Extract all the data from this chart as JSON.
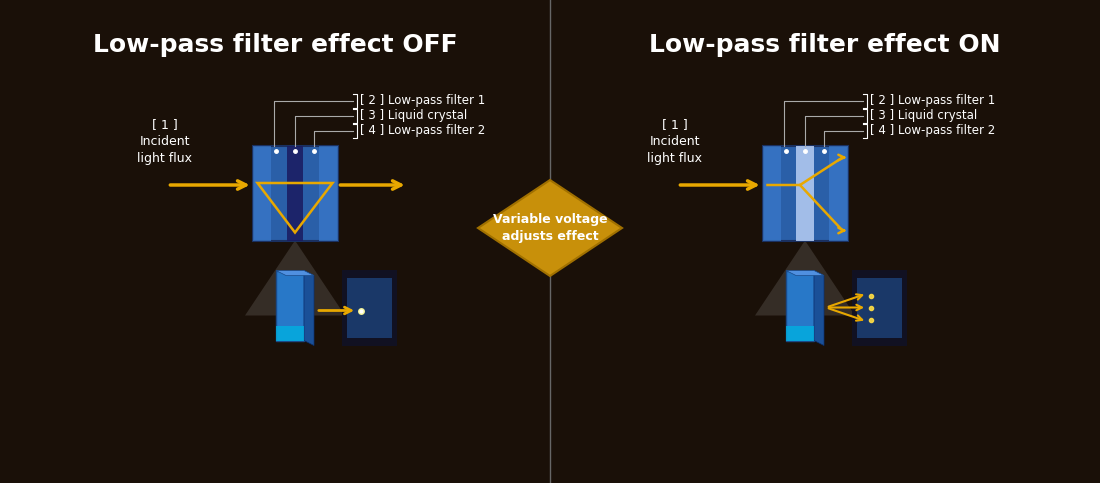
{
  "bg_color": "#1a1008",
  "divider_color": "#555555",
  "title_left": "Low-pass filter effect OFF",
  "title_right": "Low-pass filter effect ON",
  "title_color": "#ffffff",
  "title_fontsize": 18,
  "arrow_color": "#e8a800",
  "annotation_color": "#ffffff",
  "annotation_fontsize": 8.5,
  "label_color": "#ffffff",
  "label_fontsize": 9,
  "diamond_bg": "#c8900a",
  "diamond_text": "Variable voltage\nadjusts effect",
  "diamond_text_color": "#ffffff",
  "diamond_fontsize": 9,
  "filter_blue_light": "#4a90d9",
  "filter_blue_mid": "#2060a0",
  "filter_blue_dark": "#1a3d7a",
  "crystal_color": "#9ab8e8",
  "incident_label": "[ 1 ]\nIncident\nlight flux",
  "lpf1_label": "[ 2 ] Low-pass filter 1",
  "crystal_label": "[ 3 ] Liquid crystal",
  "lpf2_label": "[ 4 ] Low-pass filter 2"
}
